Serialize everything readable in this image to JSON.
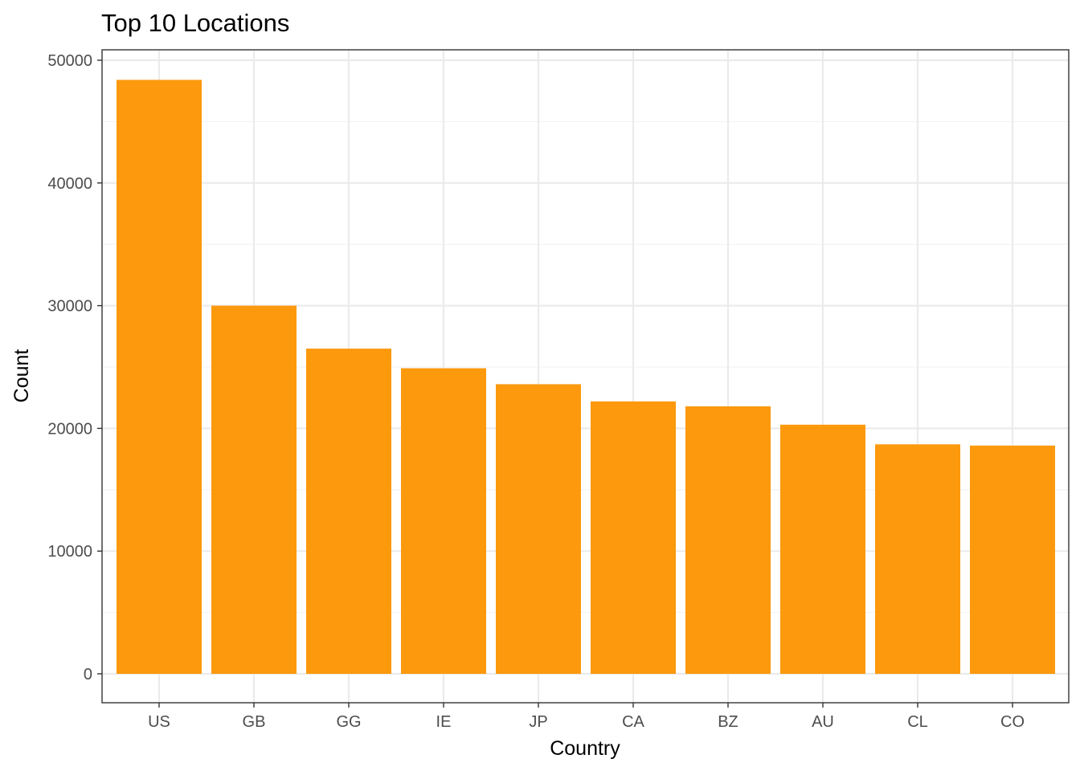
{
  "chart_data": {
    "type": "bar",
    "title": "Top 10 Locations",
    "xlabel": "Country",
    "ylabel": "Count",
    "categories": [
      "US",
      "GB",
      "GG",
      "IE",
      "JP",
      "CA",
      "BZ",
      "AU",
      "CL",
      "CO"
    ],
    "values": [
      48400,
      30000,
      26500,
      24900,
      23600,
      22200,
      21800,
      20300,
      18700,
      18600
    ],
    "ylim": [
      0,
      51500
    ],
    "yticks": [
      0,
      10000,
      20000,
      30000,
      40000,
      50000
    ],
    "ytick_labels": [
      "0",
      "10000",
      "20000",
      "30000",
      "40000",
      "50000"
    ],
    "grid": true,
    "bar_color": "#fc990d"
  }
}
